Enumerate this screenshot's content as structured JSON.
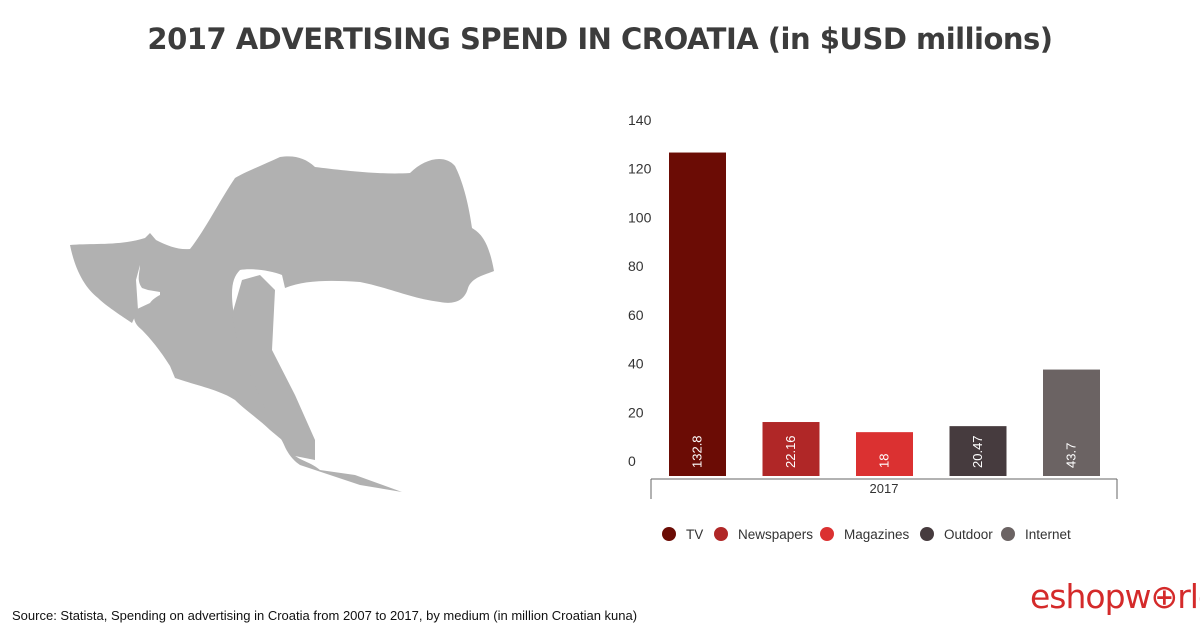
{
  "title": "2017 ADVERTISING SPEND IN CROATIA (in $USD millions)",
  "source": "Source: Statista, Spending on advertising in Croatia from 2007 to 2017, by medium (in million Croatian kuna)",
  "logo": {
    "prefix": "eshopw",
    "suffix": "rld",
    "globe_icon": "globe-icon"
  },
  "map": {
    "shape": "croatia-silhouette",
    "color": "#b1b1b1"
  },
  "chart_data": {
    "type": "bar",
    "title": "",
    "category": "2017",
    "xlabel": "",
    "ylabel": "",
    "ylim": [
      0,
      140
    ],
    "yticks": [
      0,
      20,
      40,
      60,
      80,
      100,
      120,
      140
    ],
    "grid": false,
    "legend_position": "bottom",
    "series": [
      {
        "name": "TV",
        "value": 132.8,
        "label": "132.8",
        "color": "#6b0c05"
      },
      {
        "name": "Newspapers",
        "value": 22.16,
        "label": "22.16",
        "color": "#b02727"
      },
      {
        "name": "Magazines",
        "value": 18,
        "label": "18",
        "color": "#db3131"
      },
      {
        "name": "Outdoor",
        "value": 20.47,
        "label": "20.47",
        "color": "#463b3e"
      },
      {
        "name": "Internet",
        "value": 43.7,
        "label": "43.7",
        "color": "#6b6363"
      }
    ]
  }
}
